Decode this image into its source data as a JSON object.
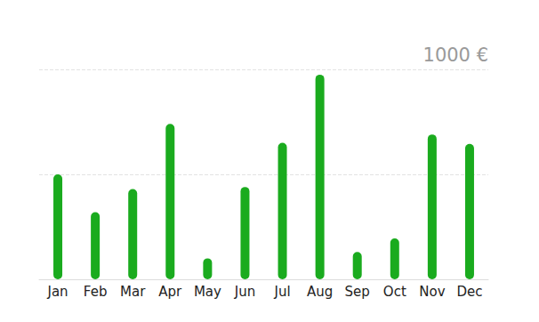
{
  "chart_data": {
    "type": "bar",
    "categories": [
      "Jan",
      "Feb",
      "Mar",
      "Apr",
      "May",
      "Jun",
      "Jul",
      "Aug",
      "Sep",
      "Oct",
      "Nov",
      "Dec"
    ],
    "values": [
      500,
      320,
      430,
      740,
      100,
      440,
      650,
      975,
      130,
      195,
      690,
      645
    ],
    "color": "#1aab1e",
    "ylim": [
      0,
      1000
    ],
    "yticks": [
      {
        "value": 0,
        "label": null
      },
      {
        "value": 500,
        "label": null
      },
      {
        "value": 1000,
        "label": "1000 €"
      }
    ],
    "grid": true
  }
}
